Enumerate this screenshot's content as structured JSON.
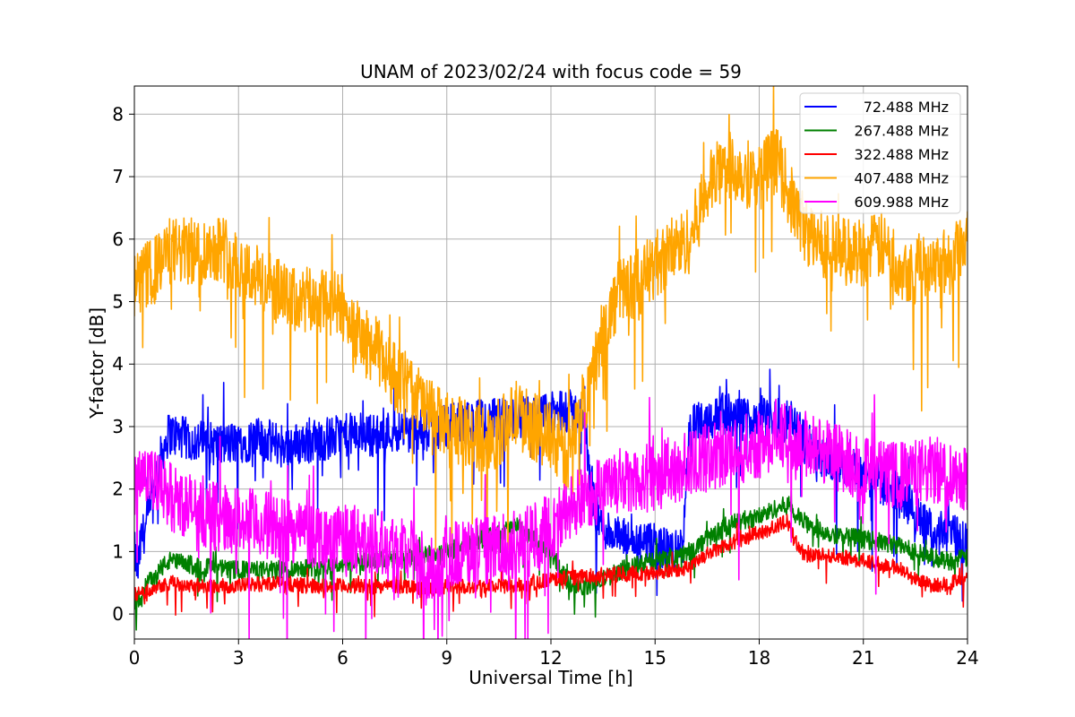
{
  "chart_data": {
    "type": "line",
    "title": "UNAM of 2023/02/24 with focus code = 59",
    "xlabel": "Universal Time [h]",
    "ylabel": "Y-factor [dB]",
    "xlim": [
      0,
      24
    ],
    "ylim": [
      -0.4,
      8.45
    ],
    "xticks": [
      0,
      3,
      6,
      9,
      12,
      15,
      18,
      21,
      24
    ],
    "yticks": [
      0,
      1,
      2,
      3,
      4,
      5,
      6,
      7,
      8
    ],
    "grid": true,
    "legend_position": "top-right",
    "series": [
      {
        "name": "72.488 MHz",
        "color": "#0000ff",
        "noise": 0.35,
        "x": [
          0,
          0.1,
          0.2,
          0.4,
          0.6,
          0.8,
          1.0,
          1.5,
          2.0,
          2.5,
          3.0,
          3.5,
          4.0,
          4.5,
          5.0,
          5.5,
          6.0,
          6.5,
          7.0,
          7.5,
          8.0,
          8.5,
          9.0,
          9.5,
          10.0,
          10.5,
          11.0,
          11.5,
          12.0,
          12.5,
          12.8,
          13.0,
          13.1,
          13.3,
          13.5,
          14.0,
          14.5,
          15.0,
          15.5,
          15.8,
          16.0,
          16.5,
          17.0,
          17.5,
          18.0,
          18.5,
          19.0,
          19.3,
          19.6,
          20.0,
          20.5,
          21.0,
          21.5,
          22.0,
          22.5,
          23.0,
          23.5,
          24.0
        ],
        "y": [
          1.0,
          0.7,
          1.2,
          1.5,
          2.1,
          2.6,
          2.9,
          2.8,
          2.75,
          2.7,
          2.75,
          2.8,
          2.75,
          2.7,
          2.75,
          2.8,
          2.85,
          2.9,
          2.85,
          2.95,
          2.9,
          2.95,
          3.0,
          3.05,
          3.1,
          3.1,
          3.15,
          3.15,
          3.2,
          3.25,
          3.2,
          3.0,
          2.2,
          1.6,
          1.4,
          1.2,
          1.1,
          1.1,
          1.0,
          1.1,
          3.0,
          3.1,
          3.2,
          3.1,
          3.2,
          3.1,
          3.1,
          2.8,
          2.6,
          2.5,
          2.4,
          2.2,
          2.1,
          2.0,
          1.6,
          1.3,
          1.3,
          1.1
        ]
      },
      {
        "name": "267.488 MHz",
        "color": "#008000",
        "noise": 0.15,
        "x": [
          0,
          0.2,
          0.5,
          1.0,
          1.5,
          2.0,
          3.0,
          4.0,
          5.0,
          6.0,
          7.0,
          8.0,
          9.0,
          10.0,
          11.0,
          12.0,
          12.5,
          13.0,
          13.5,
          14.0,
          15.0,
          16.0,
          16.5,
          17.0,
          17.5,
          18.0,
          18.5,
          18.9,
          19.0,
          19.5,
          20.0,
          21.0,
          22.0,
          22.5,
          23.0,
          23.5,
          24.0
        ],
        "y": [
          0.15,
          0.3,
          0.6,
          0.85,
          0.8,
          0.75,
          0.7,
          0.7,
          0.75,
          0.8,
          0.85,
          0.9,
          1.0,
          1.2,
          1.4,
          1.0,
          0.5,
          0.45,
          0.55,
          0.7,
          0.85,
          1.0,
          1.2,
          1.4,
          1.5,
          1.55,
          1.7,
          1.75,
          1.6,
          1.4,
          1.3,
          1.2,
          1.1,
          1.0,
          0.9,
          0.85,
          0.9
        ]
      },
      {
        "name": "322.488 MHz",
        "color": "#ff0000",
        "noise": 0.12,
        "x": [
          0,
          0.3,
          0.6,
          1.0,
          2.0,
          3.0,
          4.0,
          5.0,
          6.0,
          7.0,
          8.0,
          8.5,
          9.0,
          10.0,
          11.0,
          12.0,
          13.0,
          14.0,
          15.0,
          16.0,
          16.5,
          17.0,
          17.5,
          18.0,
          18.5,
          18.8,
          19.0,
          19.3,
          20.0,
          21.0,
          22.0,
          22.5,
          23.0,
          24.0
        ],
        "y": [
          0.3,
          0.35,
          0.45,
          0.5,
          0.45,
          0.45,
          0.5,
          0.45,
          0.45,
          0.45,
          0.45,
          0.4,
          0.45,
          0.45,
          0.45,
          0.55,
          0.6,
          0.65,
          0.65,
          0.75,
          0.95,
          1.1,
          1.2,
          1.3,
          1.4,
          1.5,
          1.2,
          0.95,
          0.95,
          0.85,
          0.75,
          0.55,
          0.45,
          0.55
        ]
      },
      {
        "name": "407.488 MHz",
        "color": "#ffa500",
        "noise": 0.55,
        "x": [
          0,
          0.3,
          0.6,
          1.0,
          1.5,
          2.0,
          2.5,
          3.0,
          3.5,
          4.0,
          4.5,
          5.0,
          5.5,
          6.0,
          6.5,
          7.0,
          7.5,
          8.0,
          8.5,
          9.0,
          9.5,
          10.0,
          10.5,
          11.0,
          11.5,
          12.0,
          12.5,
          13.0,
          13.5,
          14.0,
          14.5,
          15.0,
          15.5,
          16.0,
          16.5,
          17.0,
          17.5,
          18.0,
          18.5,
          19.0,
          19.5,
          20.0,
          20.5,
          21.0,
          21.5,
          22.0,
          22.5,
          23.0,
          23.5,
          24.0
        ],
        "y": [
          5.2,
          5.4,
          5.5,
          5.8,
          5.8,
          5.8,
          5.9,
          5.6,
          5.4,
          5.2,
          5.0,
          5.0,
          5.0,
          4.9,
          4.4,
          4.2,
          3.8,
          3.6,
          3.2,
          3.0,
          2.9,
          2.8,
          2.9,
          3.2,
          3.0,
          2.8,
          2.5,
          3.5,
          4.5,
          5.2,
          5.3,
          5.6,
          5.8,
          6.0,
          6.8,
          7.2,
          7.1,
          7.0,
          7.3,
          6.5,
          6.0,
          5.9,
          5.8,
          5.8,
          5.9,
          5.6,
          5.5,
          5.7,
          5.6,
          6.1
        ]
      },
      {
        "name": "609.988 MHz",
        "color": "#ff00ff",
        "noise": 0.55,
        "x": [
          0,
          0.2,
          0.5,
          1.0,
          2.0,
          3.0,
          4.0,
          5.0,
          6.0,
          7.0,
          7.5,
          8.0,
          8.3,
          8.6,
          9.0,
          10.0,
          11.0,
          12.0,
          13.0,
          14.0,
          15.0,
          16.0,
          17.0,
          18.0,
          18.5,
          19.0,
          19.5,
          20.0,
          21.0,
          22.0,
          23.0,
          24.0
        ],
        "y": [
          1.9,
          2.5,
          2.1,
          1.9,
          1.6,
          1.5,
          1.4,
          1.3,
          1.2,
          1.2,
          1.1,
          1.0,
          0.55,
          0.7,
          0.95,
          1.0,
          1.1,
          1.4,
          1.9,
          2.1,
          2.2,
          2.4,
          2.6,
          2.7,
          2.9,
          2.8,
          2.7,
          2.6,
          2.3,
          2.2,
          2.3,
          2.2
        ]
      }
    ]
  }
}
